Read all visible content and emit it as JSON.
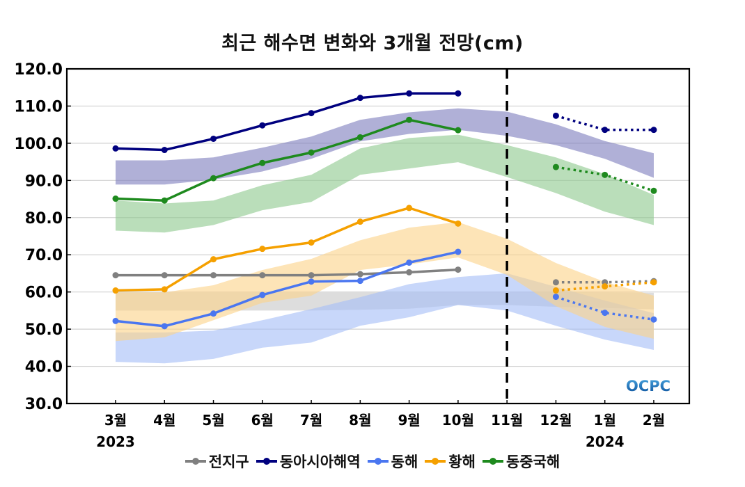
{
  "chart_data": {
    "type": "line",
    "title": "최근 해수면 변화와 3개월 전망(cm)",
    "xlabel": "",
    "ylabel": "",
    "ylim": [
      30,
      120
    ],
    "yticks": [
      "120.0",
      "110.0",
      "100.0",
      "90.0",
      "80.0",
      "70.0",
      "60.0",
      "50.0",
      "40.0",
      "30.0"
    ],
    "ytick_values": [
      120,
      110,
      100,
      90,
      80,
      70,
      60,
      50,
      40,
      30
    ],
    "categories": [
      "3월",
      "4월",
      "5월",
      "6월",
      "7월",
      "8월",
      "9월",
      "10월",
      "11월",
      "12월",
      "1월",
      "2월"
    ],
    "year_labels": [
      {
        "text": "2023",
        "category_index": 0
      },
      {
        "text": "2024",
        "category_index": 10
      }
    ],
    "grid": true,
    "divider": {
      "category_index": 8,
      "style": "dashed"
    },
    "legend": "bottom",
    "watermark": "OCPC",
    "series": [
      {
        "name": "전지구",
        "color": "#808080",
        "band_color": "#c8c8c8",
        "observed": [
          64.5,
          64.5,
          64.5,
          64.5,
          64.5,
          64.8,
          65.3,
          66.0,
          null,
          null,
          null,
          null
        ],
        "forecast": [
          null,
          null,
          null,
          null,
          null,
          null,
          null,
          null,
          null,
          62.6,
          62.6,
          62.9
        ],
        "band_upper": [
          59.9,
          59.9,
          59.9,
          59.9,
          59.9,
          59.9,
          59.9,
          60.0,
          60.0,
          60.0,
          59.9,
          59.8
        ],
        "band_lower": [
          55.0,
          55.0,
          55.0,
          55.0,
          55.0,
          55.2,
          55.5,
          56.5,
          56.5,
          56.0,
          55.7,
          55.3
        ]
      },
      {
        "name": "동아시아해역",
        "color": "#00007f",
        "band_color": "#7f7fbf",
        "observed": [
          98.6,
          98.2,
          101.2,
          104.8,
          108.1,
          112.2,
          113.4,
          113.4,
          null,
          null,
          null,
          null
        ],
        "forecast": [
          null,
          null,
          null,
          null,
          null,
          null,
          null,
          null,
          null,
          107.4,
          103.6,
          103.6
        ],
        "band_upper": [
          95.4,
          95.4,
          96.2,
          98.8,
          101.8,
          106.3,
          108.3,
          109.4,
          108.5,
          105.1,
          100.6,
          97.3
        ],
        "band_lower": [
          88.9,
          88.9,
          90.2,
          92.4,
          95.8,
          100.5,
          102.5,
          103.6,
          102.0,
          99.5,
          95.8,
          90.7
        ]
      },
      {
        "name": "동해",
        "color": "#4a76f0",
        "band_color": "#a6bff7",
        "observed": [
          52.2,
          50.8,
          54.2,
          59.2,
          62.8,
          63.0,
          67.9,
          70.8,
          null,
          null,
          null,
          null
        ],
        "forecast": [
          null,
          null,
          null,
          null,
          null,
          null,
          null,
          null,
          null,
          58.7,
          54.4,
          52.6
        ],
        "band_upper": [
          49.1,
          49.1,
          49.6,
          52.4,
          55.4,
          58.6,
          62.1,
          64.0,
          65.0,
          61.4,
          57.7,
          54.3
        ],
        "band_lower": [
          41.2,
          40.8,
          42.0,
          45.0,
          46.4,
          50.9,
          53.2,
          56.5,
          55.0,
          50.9,
          47.2,
          44.4
        ]
      },
      {
        "name": "황해",
        "color": "#f5a000",
        "band_color": "#fcd38a",
        "observed": [
          60.4,
          60.7,
          68.8,
          71.6,
          73.3,
          78.9,
          82.6,
          78.4,
          null,
          null,
          null,
          null
        ],
        "forecast": [
          null,
          null,
          null,
          null,
          null,
          null,
          null,
          null,
          null,
          60.4,
          61.5,
          62.6
        ],
        "band_upper": [
          59.9,
          59.9,
          61.8,
          65.9,
          68.9,
          73.9,
          77.3,
          78.8,
          74.3,
          67.8,
          62.7,
          59.0
        ],
        "band_lower": [
          46.8,
          47.8,
          52.4,
          57.1,
          59.0,
          65.9,
          67.4,
          69.3,
          64.6,
          56.2,
          50.6,
          47.4
        ]
      },
      {
        "name": "동중국해",
        "color": "#1e8a1e",
        "band_color": "#8fc98f",
        "observed": [
          85.1,
          84.6,
          90.6,
          94.7,
          97.5,
          101.6,
          106.3,
          103.5,
          null,
          null,
          null,
          null
        ],
        "forecast": [
          null,
          null,
          null,
          null,
          null,
          null,
          null,
          null,
          null,
          93.6,
          91.5,
          87.2
        ],
        "band_upper": [
          84.6,
          83.8,
          84.6,
          88.7,
          91.5,
          98.6,
          101.4,
          102.3,
          99.5,
          96.2,
          91.7,
          86.1
        ],
        "band_lower": [
          76.5,
          76.0,
          78.0,
          82.0,
          84.2,
          91.5,
          93.2,
          94.9,
          90.9,
          86.6,
          81.6,
          78.0
        ]
      }
    ]
  }
}
